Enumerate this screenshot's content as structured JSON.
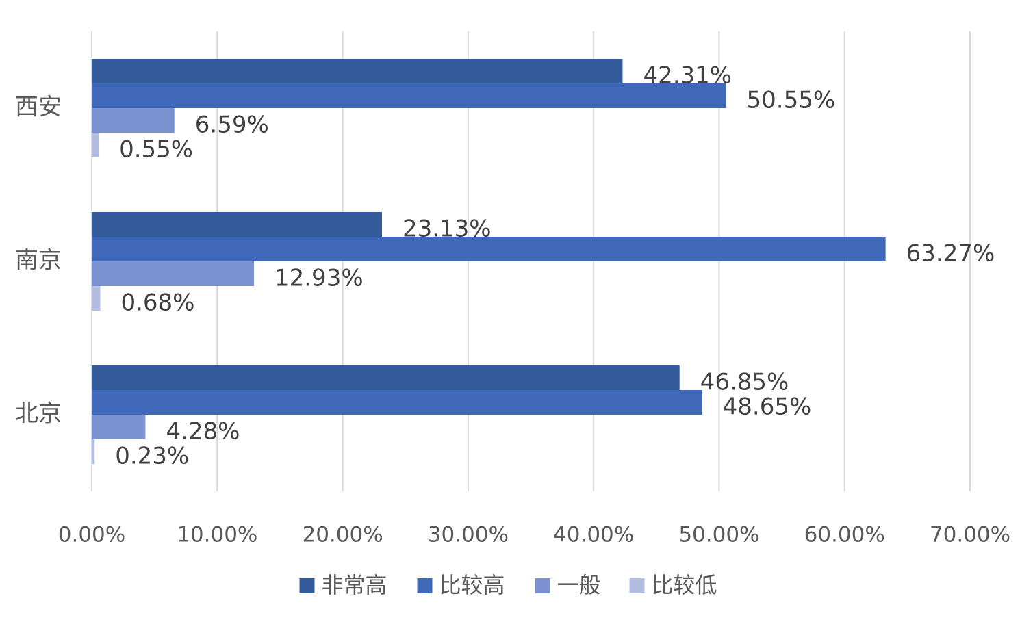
{
  "chart_data": {
    "type": "hbar",
    "categories": [
      "西安",
      "南京",
      "北京"
    ],
    "series": [
      {
        "name": "非常高",
        "color": "#335a9b",
        "values": [
          42.31,
          23.13,
          46.85
        ],
        "value_labels": [
          "42.31%",
          "23.13%",
          "46.85%"
        ]
      },
      {
        "name": "比较高",
        "color": "#3f69b8",
        "values": [
          50.55,
          63.27,
          48.65
        ],
        "value_labels": [
          "50.55%",
          "63.27%",
          "48.65%"
        ]
      },
      {
        "name": "一般",
        "color": "#7b91d0",
        "values": [
          6.59,
          12.93,
          4.28
        ],
        "value_labels": [
          "6.59%",
          "12.93%",
          "4.28%"
        ]
      },
      {
        "name": "比较低",
        "color": "#b3bde2",
        "values": [
          0.55,
          0.68,
          0.23
        ],
        "value_labels": [
          "0.55%",
          "0.68%",
          "0.23%"
        ]
      }
    ],
    "xlim": [
      0,
      70
    ],
    "xticks": [
      {
        "value": 0,
        "label": "0.00%"
      },
      {
        "value": 10,
        "label": "10.00%"
      },
      {
        "value": 20,
        "label": "20.00%"
      },
      {
        "value": 30,
        "label": "30.00%"
      },
      {
        "value": 40,
        "label": "40.00%"
      },
      {
        "value": 50,
        "label": "50.00%"
      },
      {
        "value": 60,
        "label": "60.00%"
      },
      {
        "value": 70,
        "label": "70.00%"
      }
    ],
    "grid": true,
    "legend": "bottom"
  }
}
